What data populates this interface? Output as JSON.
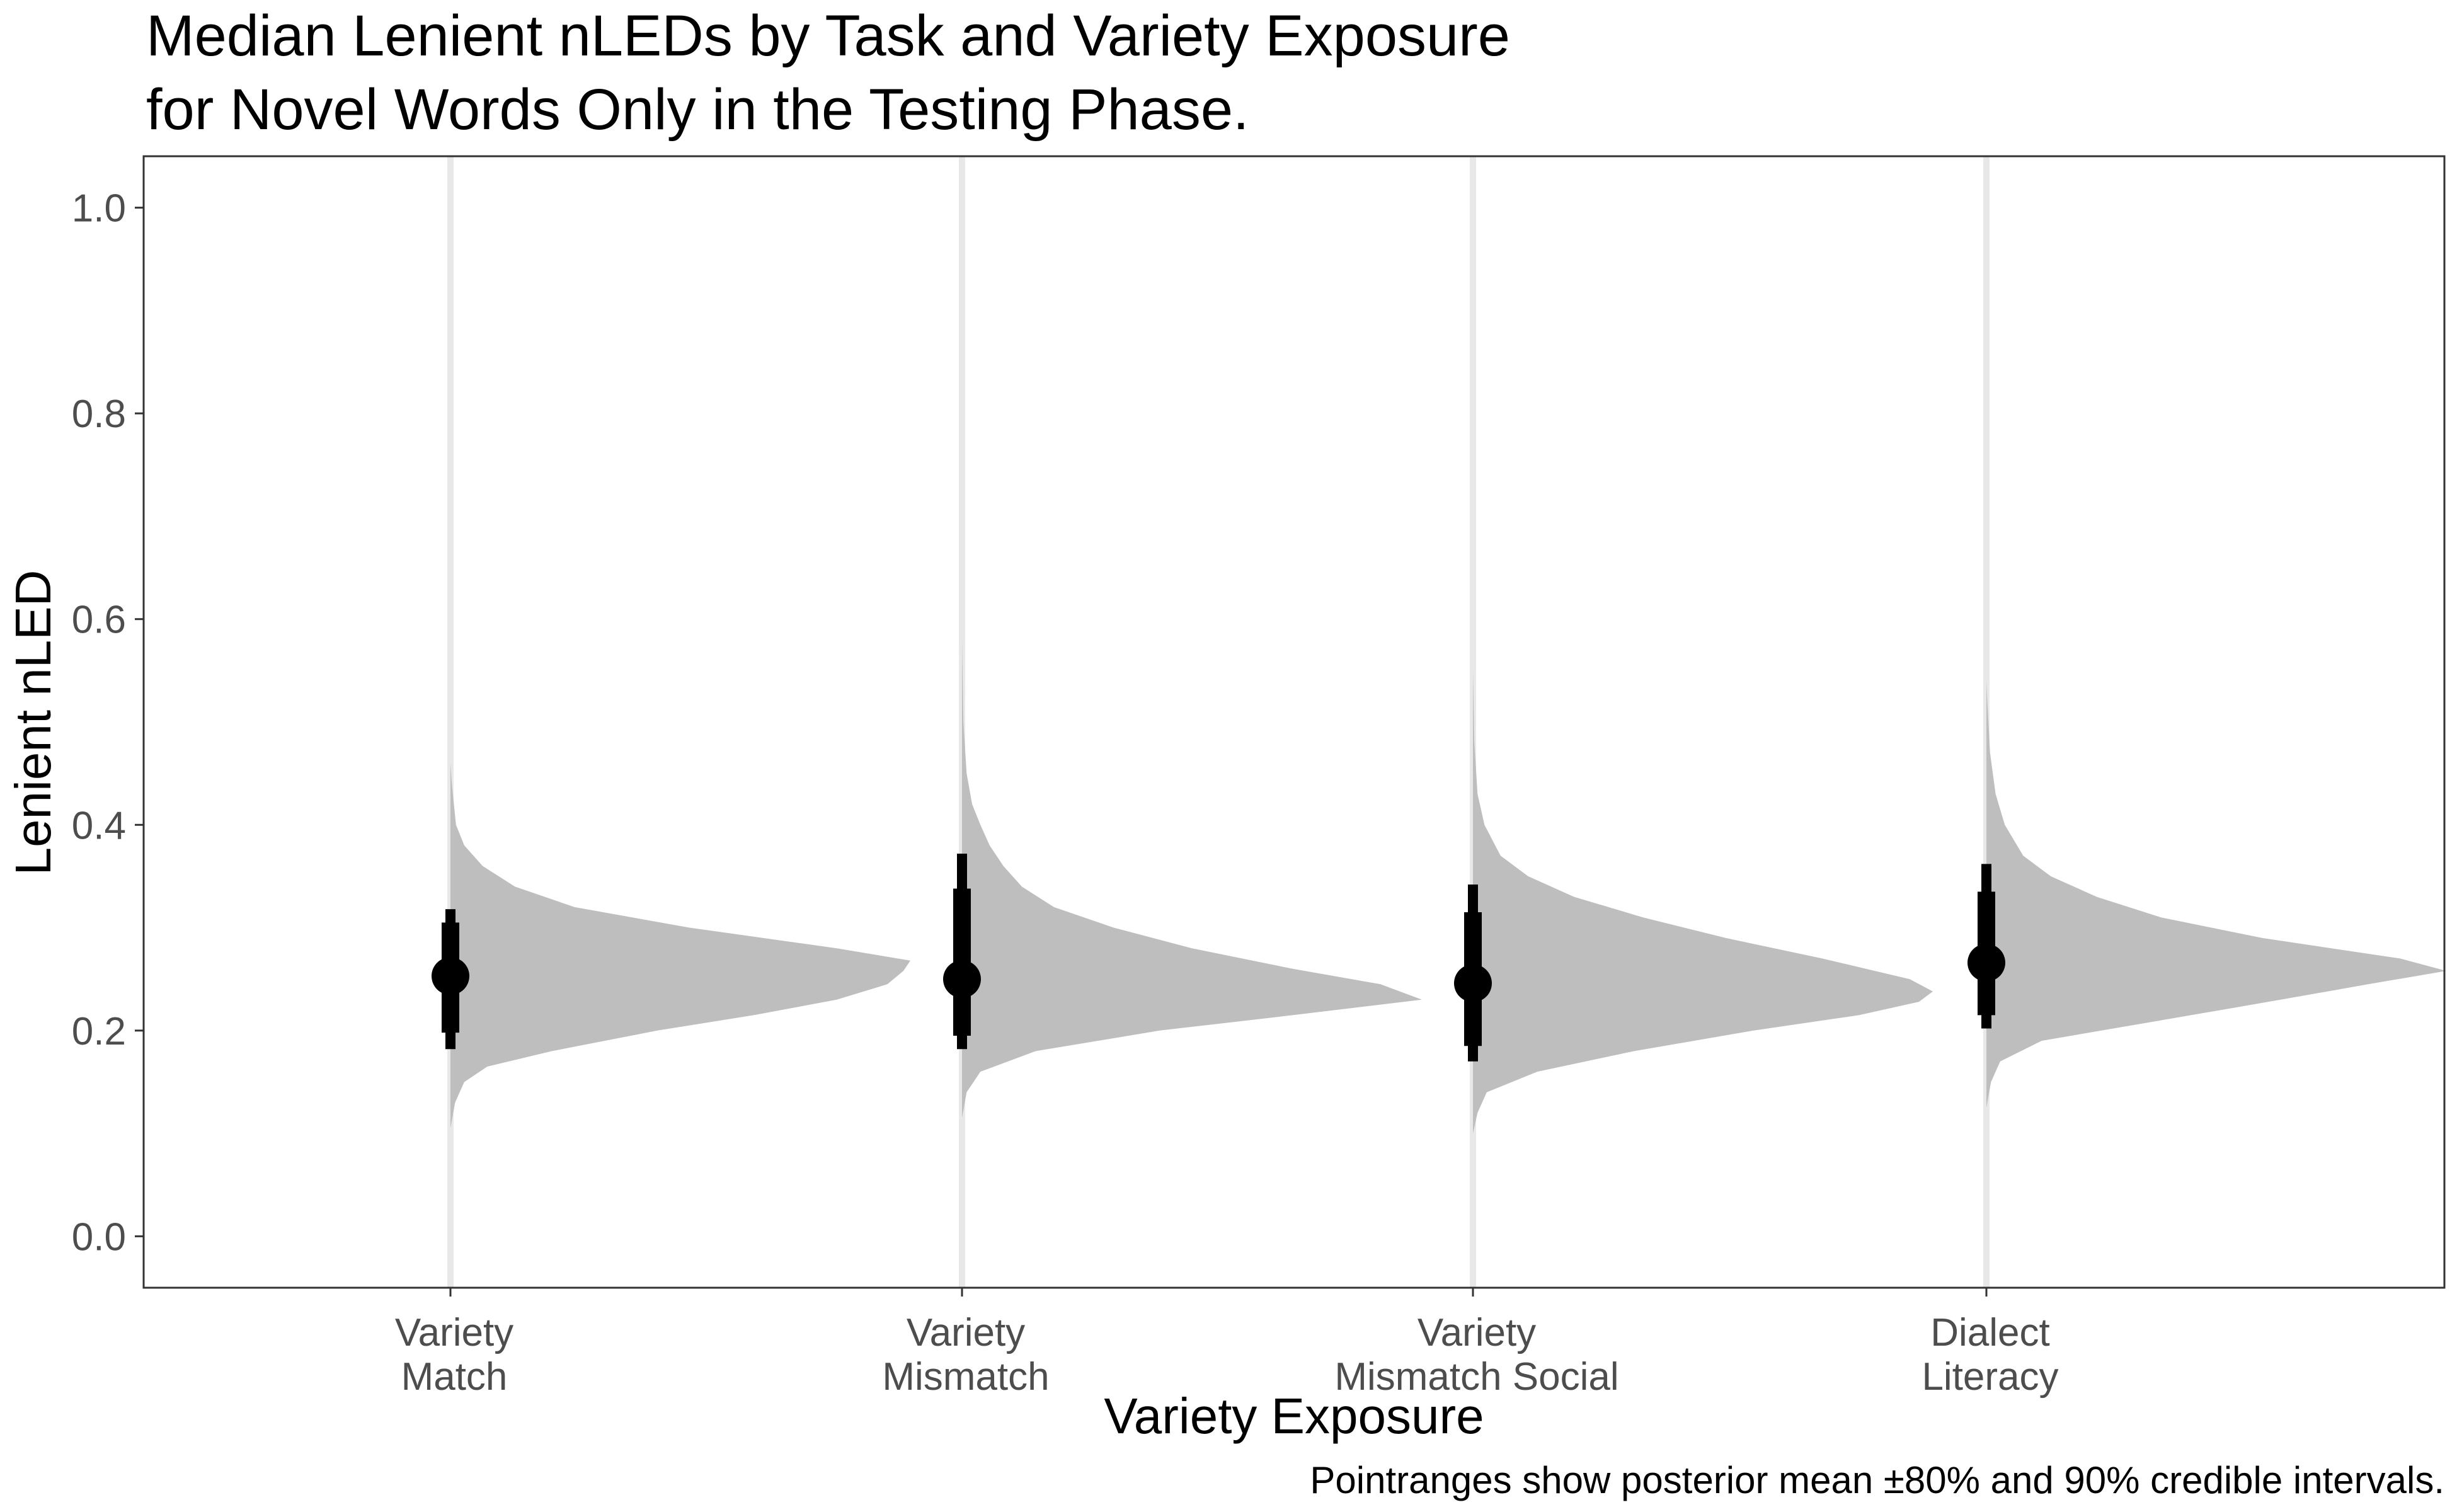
{
  "chart_data": {
    "type": "violin",
    "title": [
      "Median Lenient nLEDs by Task and Variety Exposure",
      "for Novel Words Only in the Testing Phase."
    ],
    "xlabel": "Variety Exposure",
    "ylabel": "Lenient nLED",
    "caption": "Pointranges show posterior mean ±80% and 90% credible intervals.",
    "ylim": [
      -0.05,
      1.05
    ],
    "yticks": [
      0.0,
      0.2,
      0.4,
      0.6,
      0.8,
      1.0
    ],
    "ytick_labels": [
      "0.0",
      "0.2",
      "0.4",
      "0.6",
      "0.8",
      "1.0"
    ],
    "categories": [
      [
        "Variety",
        "Match"
      ],
      [
        "Variety",
        "Mismatch"
      ],
      [
        "Variety",
        "Mismatch Social"
      ],
      [
        "Dialect",
        "Literacy"
      ]
    ],
    "series": [
      {
        "mean": 0.253,
        "ci80": [
          0.198,
          0.305
        ],
        "ci90": [
          0.182,
          0.318
        ],
        "density": [
          [
            0.105,
            0
          ],
          [
            0.13,
            0.01
          ],
          [
            0.15,
            0.03
          ],
          [
            0.165,
            0.08
          ],
          [
            0.18,
            0.22
          ],
          [
            0.2,
            0.45
          ],
          [
            0.215,
            0.66
          ],
          [
            0.23,
            0.84
          ],
          [
            0.245,
            0.95
          ],
          [
            0.258,
            0.985
          ],
          [
            0.268,
            1.0
          ],
          [
            0.28,
            0.84
          ],
          [
            0.3,
            0.52
          ],
          [
            0.32,
            0.27
          ],
          [
            0.34,
            0.14
          ],
          [
            0.36,
            0.07
          ],
          [
            0.38,
            0.03
          ],
          [
            0.4,
            0.012
          ],
          [
            0.44,
            0.003
          ],
          [
            0.46,
            0
          ]
        ]
      },
      {
        "mean": 0.25,
        "ci80": [
          0.195,
          0.338
        ],
        "ci90": [
          0.182,
          0.372
        ],
        "density": [
          [
            0.115,
            0
          ],
          [
            0.14,
            0.01
          ],
          [
            0.16,
            0.04
          ],
          [
            0.18,
            0.16
          ],
          [
            0.2,
            0.43
          ],
          [
            0.215,
            0.72
          ],
          [
            0.23,
            1.0
          ],
          [
            0.245,
            0.91
          ],
          [
            0.26,
            0.72
          ],
          [
            0.28,
            0.5
          ],
          [
            0.3,
            0.33
          ],
          [
            0.32,
            0.2
          ],
          [
            0.34,
            0.13
          ],
          [
            0.36,
            0.09
          ],
          [
            0.38,
            0.06
          ],
          [
            0.4,
            0.04
          ],
          [
            0.42,
            0.022
          ],
          [
            0.45,
            0.01
          ],
          [
            0.5,
            0.003
          ],
          [
            0.58,
            0
          ]
        ]
      },
      {
        "mean": 0.246,
        "ci80": [
          0.185,
          0.315
        ],
        "ci90": [
          0.17,
          0.342
        ],
        "density": [
          [
            0.1,
            0
          ],
          [
            0.12,
            0.01
          ],
          [
            0.14,
            0.03
          ],
          [
            0.16,
            0.14
          ],
          [
            0.18,
            0.35
          ],
          [
            0.2,
            0.61
          ],
          [
            0.215,
            0.84
          ],
          [
            0.228,
            0.97
          ],
          [
            0.238,
            1.0
          ],
          [
            0.25,
            0.95
          ],
          [
            0.27,
            0.76
          ],
          [
            0.29,
            0.55
          ],
          [
            0.31,
            0.37
          ],
          [
            0.33,
            0.22
          ],
          [
            0.35,
            0.12
          ],
          [
            0.37,
            0.06
          ],
          [
            0.4,
            0.025
          ],
          [
            0.43,
            0.01
          ],
          [
            0.48,
            0.003
          ],
          [
            0.55,
            0
          ]
        ]
      },
      {
        "mean": 0.266,
        "ci80": [
          0.215,
          0.335
        ],
        "ci90": [
          0.202,
          0.362
        ],
        "density": [
          [
            0.125,
            0
          ],
          [
            0.15,
            0.01
          ],
          [
            0.17,
            0.03
          ],
          [
            0.19,
            0.12
          ],
          [
            0.21,
            0.38
          ],
          [
            0.23,
            0.64
          ],
          [
            0.245,
            0.83
          ],
          [
            0.258,
            1.0
          ],
          [
            0.27,
            0.9
          ],
          [
            0.29,
            0.6
          ],
          [
            0.31,
            0.38
          ],
          [
            0.33,
            0.24
          ],
          [
            0.35,
            0.14
          ],
          [
            0.37,
            0.08
          ],
          [
            0.4,
            0.04
          ],
          [
            0.43,
            0.02
          ],
          [
            0.47,
            0.008
          ],
          [
            0.52,
            0.002
          ],
          [
            0.54,
            0
          ]
        ]
      }
    ],
    "violin_fill": "#bebebe",
    "point_color": "#000000",
    "baseline_color": "#e8e8e8",
    "grid": false,
    "legend": "none"
  }
}
